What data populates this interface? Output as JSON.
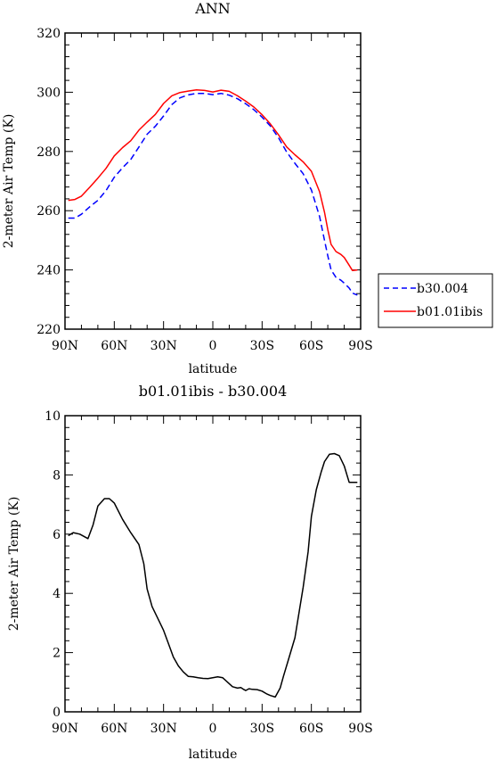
{
  "chart_data": [
    {
      "type": "line",
      "title": "ANN",
      "xlabel": "latitude",
      "ylabel": "2-meter Air Temp (K)",
      "xlim": [
        90,
        -90
      ],
      "ylim": [
        220,
        320
      ],
      "x_ticks": [
        90,
        60,
        30,
        0,
        -30,
        -60,
        -90
      ],
      "x_tick_labels": [
        "90N",
        "60N",
        "30N",
        "0",
        "30S",
        "60S",
        "90S"
      ],
      "y_ticks": [
        220,
        240,
        260,
        280,
        300,
        320
      ],
      "y_tick_labels": [
        "220",
        "240",
        "260",
        "280",
        "300",
        "320"
      ],
      "legend": "right",
      "series": [
        {
          "name": "b30.004",
          "color": "#0000ff",
          "dash": true,
          "x": [
            88,
            84,
            80,
            75,
            70,
            65,
            60,
            55,
            50,
            45,
            40,
            35,
            30,
            25,
            20,
            15,
            10,
            5,
            0,
            -5,
            -10,
            -15,
            -20,
            -25,
            -30,
            -35,
            -40,
            -45,
            -50,
            -55,
            -60,
            -65,
            -68,
            -70,
            -72,
            -75,
            -78,
            -80,
            -83,
            -85,
            -88
          ],
          "values": [
            257.5,
            257.5,
            258.8,
            261.3,
            263.5,
            266.8,
            271.3,
            274.5,
            277.3,
            281.5,
            285.8,
            288.5,
            292.0,
            295.8,
            298.1,
            299.1,
            299.6,
            299.6,
            299.2,
            299.6,
            299.0,
            297.8,
            296.1,
            294.1,
            291.6,
            288.6,
            284.6,
            279.8,
            276.0,
            272.5,
            267.0,
            258.0,
            250.0,
            244.8,
            240.0,
            237.5,
            236.5,
            235.5,
            233.9,
            232.2,
            231.5
          ]
        },
        {
          "name": "b01.01ibis",
          "color": "#ff0000",
          "dash": false,
          "x": [
            88,
            84,
            80,
            75,
            70,
            65,
            60,
            55,
            50,
            45,
            40,
            35,
            30,
            25,
            20,
            15,
            10,
            5,
            0,
            -5,
            -10,
            -15,
            -20,
            -25,
            -30,
            -35,
            -40,
            -45,
            -50,
            -55,
            -60,
            -65,
            -68,
            -70,
            -72,
            -75,
            -78,
            -80,
            -83,
            -85,
            -88
          ],
          "values": [
            263.5,
            263.8,
            264.9,
            267.9,
            271.0,
            274.3,
            278.5,
            281.3,
            283.6,
            287.2,
            289.9,
            292.5,
            296.2,
            298.8,
            299.9,
            300.4,
            300.8,
            300.6,
            300.1,
            300.7,
            300.3,
            298.8,
            297.0,
            295.0,
            292.4,
            289.3,
            285.6,
            281.5,
            278.9,
            276.5,
            273.3,
            266.4,
            259.5,
            253.6,
            248.6,
            246.2,
            245.2,
            244.2,
            241.6,
            239.8,
            240.0
          ]
        }
      ]
    },
    {
      "type": "line",
      "title": "b01.01ibis - b30.004",
      "xlabel": "latitude",
      "ylabel": "2-meter Air Temp (K)",
      "xlim": [
        90,
        -90
      ],
      "ylim": [
        0,
        10
      ],
      "x_ticks": [
        90,
        60,
        30,
        0,
        -30,
        -60,
        -90
      ],
      "x_tick_labels": [
        "90N",
        "60N",
        "30N",
        "0",
        "30S",
        "60S",
        "90S"
      ],
      "y_ticks": [
        0,
        2,
        4,
        6,
        8,
        10
      ],
      "y_tick_labels": [
        "0",
        "2",
        "4",
        "6",
        "8",
        "10"
      ],
      "series": [
        {
          "color": "#000000",
          "dash": false,
          "x": [
            88,
            85,
            81,
            76,
            73,
            70,
            66,
            63,
            60,
            55,
            50,
            45,
            42,
            40,
            37,
            33,
            30,
            27,
            24,
            21,
            18,
            15,
            12,
            9,
            6,
            3,
            0,
            -3,
            -6,
            -9,
            -12,
            -15,
            -17,
            -19,
            -20,
            -22,
            -24,
            -27,
            -30,
            -33,
            -35,
            -38,
            -41,
            -43,
            -46,
            -50,
            -55,
            -58,
            -60,
            -63,
            -66,
            -68,
            -71,
            -74,
            -77,
            -80,
            -83,
            -86,
            -88
          ],
          "values": [
            5.95,
            6.05,
            6.0,
            5.85,
            6.3,
            6.95,
            7.2,
            7.2,
            7.05,
            6.5,
            6.05,
            5.65,
            5.0,
            4.15,
            3.55,
            3.1,
            2.75,
            2.3,
            1.85,
            1.55,
            1.35,
            1.2,
            1.18,
            1.15,
            1.13,
            1.12,
            1.15,
            1.18,
            1.15,
            1.0,
            0.85,
            0.8,
            0.82,
            0.75,
            0.72,
            0.78,
            0.76,
            0.75,
            0.7,
            0.6,
            0.55,
            0.5,
            0.8,
            1.2,
            1.75,
            2.5,
            4.2,
            5.4,
            6.6,
            7.5,
            8.1,
            8.45,
            8.7,
            8.72,
            8.65,
            8.3,
            7.75,
            7.75,
            7.75
          ]
        }
      ]
    }
  ]
}
